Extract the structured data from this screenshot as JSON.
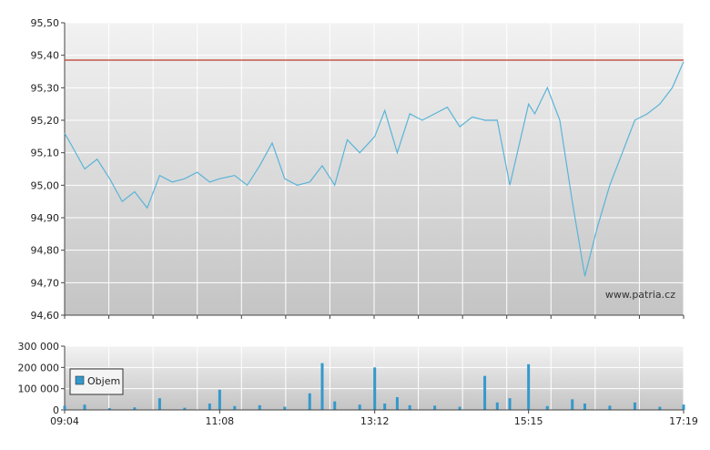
{
  "chart_data": [
    {
      "type": "line",
      "title": "",
      "xlabel": "",
      "ylabel": "",
      "ylim": [
        94.6,
        95.5
      ],
      "y_ticks": [
        "95,50",
        "95,40",
        "95,30",
        "95,20",
        "95,10",
        "95,00",
        "94,90",
        "94,80",
        "94,70",
        "94,60"
      ],
      "y_tick_values": [
        95.5,
        95.4,
        95.3,
        95.2,
        95.1,
        95.0,
        94.9,
        94.8,
        94.7,
        94.6
      ],
      "reference_line": 95.385,
      "watermark": "www.patria.cz",
      "grid": true,
      "colors": {
        "line": "#5ab4d8",
        "reference": "#c0392b",
        "grid": "#ffffff",
        "background_top": "#f0f0f0",
        "background_bottom": "#c8c8c8"
      },
      "series": [
        {
          "x": [
            "09:04",
            "09:10",
            "09:20",
            "09:30",
            "09:40",
            "09:50",
            "10:00",
            "10:10",
            "10:20",
            "10:30",
            "10:40",
            "10:50",
            "11:00",
            "11:08",
            "11:20",
            "11:30",
            "11:40",
            "11:50",
            "12:00",
            "12:10",
            "12:20",
            "12:30",
            "12:40",
            "12:50",
            "13:00",
            "13:12",
            "13:20",
            "13:30",
            "13:40",
            "13:50",
            "14:00",
            "14:10",
            "14:20",
            "14:30",
            "14:40",
            "14:50",
            "15:00",
            "15:15",
            "15:20",
            "15:30",
            "15:40",
            "15:50",
            "16:00",
            "16:10",
            "16:20",
            "16:30",
            "16:40",
            "16:50",
            "17:00",
            "17:10",
            "17:19"
          ],
          "values": [
            95.16,
            95.12,
            95.05,
            95.08,
            95.02,
            94.95,
            94.98,
            94.93,
            95.03,
            95.01,
            95.02,
            95.04,
            95.01,
            95.02,
            95.03,
            95.0,
            95.06,
            95.13,
            95.02,
            95.0,
            95.01,
            95.06,
            95.0,
            95.14,
            95.1,
            95.15,
            95.23,
            95.1,
            95.22,
            95.2,
            95.22,
            95.24,
            95.18,
            95.21,
            95.2,
            95.2,
            95.0,
            95.25,
            95.22,
            95.3,
            95.2,
            94.95,
            94.72,
            94.87,
            95.0,
            95.1,
            95.2,
            95.22,
            95.25,
            95.3,
            95.38
          ]
        }
      ]
    },
    {
      "type": "bar",
      "title": "",
      "xlabel": "",
      "ylabel": "",
      "ylim": [
        0,
        300000
      ],
      "y_ticks": [
        "300 000",
        "200 000",
        "100 000",
        "0"
      ],
      "y_tick_values": [
        300000,
        200000,
        100000,
        0
      ],
      "x_ticks": [
        "09:04",
        "11:08",
        "13:12",
        "15:15",
        "17:19"
      ],
      "legend": {
        "label": "Objem",
        "placement": "bottom-left"
      },
      "colors": {
        "bar": "#3399cc"
      },
      "series": [
        {
          "name": "Objem",
          "x": [
            "09:04",
            "09:20",
            "09:40",
            "10:00",
            "10:20",
            "10:40",
            "11:00",
            "11:08",
            "11:20",
            "11:40",
            "12:00",
            "12:20",
            "12:30",
            "12:40",
            "13:00",
            "13:12",
            "13:20",
            "13:30",
            "13:40",
            "14:00",
            "14:20",
            "14:40",
            "14:50",
            "15:00",
            "15:15",
            "15:30",
            "15:50",
            "16:00",
            "16:20",
            "16:40",
            "17:00",
            "17:19"
          ],
          "values": [
            20000,
            25000,
            8000,
            12000,
            55000,
            10000,
            30000,
            95000,
            18000,
            22000,
            15000,
            78000,
            220000,
            40000,
            25000,
            200000,
            30000,
            60000,
            22000,
            20000,
            15000,
            160000,
            35000,
            55000,
            215000,
            18000,
            50000,
            30000,
            20000,
            35000,
            15000,
            25000
          ]
        }
      ]
    }
  ]
}
